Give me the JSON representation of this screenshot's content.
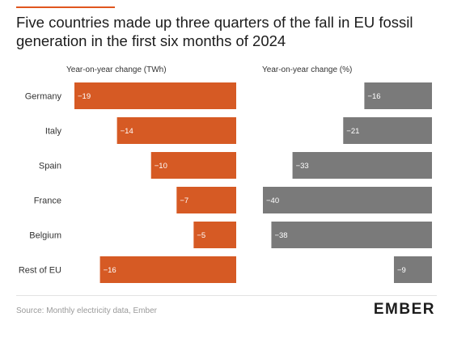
{
  "title": "Five countries made up three quarters of the fall in EU fossil generation in the first six months of 2024",
  "source": "Source: Monthly electricity data, Ember",
  "logo": "EMBER",
  "colors": {
    "accent": "#e0561f",
    "twh_bar": "#d65a24",
    "pct_bar": "#7a7a7a",
    "bar_label": "#ffffff",
    "category_label": "#333333"
  },
  "chart_data": [
    {
      "type": "bar",
      "orientation": "horizontal",
      "title": "Year-on-year change (TWh)",
      "categories": [
        "Germany",
        "Italy",
        "Spain",
        "France",
        "Belgium",
        "Rest of EU"
      ],
      "values": [
        -19,
        -14,
        -10,
        -7,
        -5,
        -16
      ],
      "data_labels": [
        "-19",
        "-14",
        "-10",
        "-7",
        "-5",
        "-16"
      ],
      "xlim": [
        -19,
        0
      ],
      "grid": false,
      "legend": "none"
    },
    {
      "type": "bar",
      "orientation": "horizontal",
      "title": "Year-on-year change (%)",
      "categories": [
        "Germany",
        "Italy",
        "Spain",
        "France",
        "Belgium",
        "Rest of EU"
      ],
      "values": [
        -16,
        -21,
        -33,
        -40,
        -38,
        -9
      ],
      "data_labels": [
        "-16",
        "-21",
        "-33",
        "-40",
        "-38",
        "-9"
      ],
      "xlim": [
        -40,
        0
      ],
      "grid": false,
      "legend": "none"
    }
  ]
}
